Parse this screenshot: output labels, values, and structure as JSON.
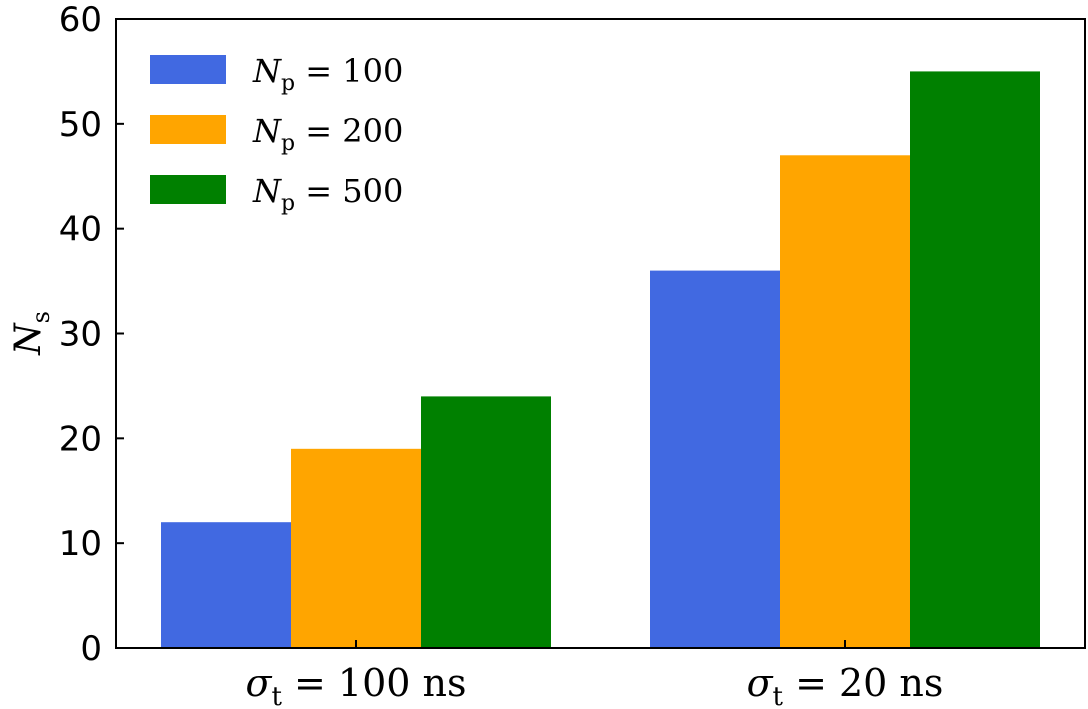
{
  "chart_data": {
    "type": "bar",
    "categories": [
      {
        "main": "σ",
        "sub": "t",
        "rest": " = 100 ns"
      },
      {
        "main": "σ",
        "sub": "t",
        "rest": " = 20 ns"
      }
    ],
    "series": [
      {
        "name": {
          "main": "N",
          "sub": "p",
          "rest": " = 100"
        },
        "color": "#4169E1",
        "values": [
          12,
          36
        ]
      },
      {
        "name": {
          "main": "N",
          "sub": "p",
          "rest": " = 200"
        },
        "color": "#FFA500",
        "values": [
          19,
          47
        ]
      },
      {
        "name": {
          "main": "N",
          "sub": "p",
          "rest": " = 500"
        },
        "color": "#008000",
        "values": [
          24,
          55
        ]
      }
    ],
    "ylabel": {
      "main": "N",
      "sub": "s"
    },
    "ylim": [
      0,
      60
    ],
    "yticks": [
      "0",
      "10",
      "20",
      "30",
      "40",
      "50",
      "60"
    ],
    "legend_position": "top-left",
    "grid": false
  }
}
